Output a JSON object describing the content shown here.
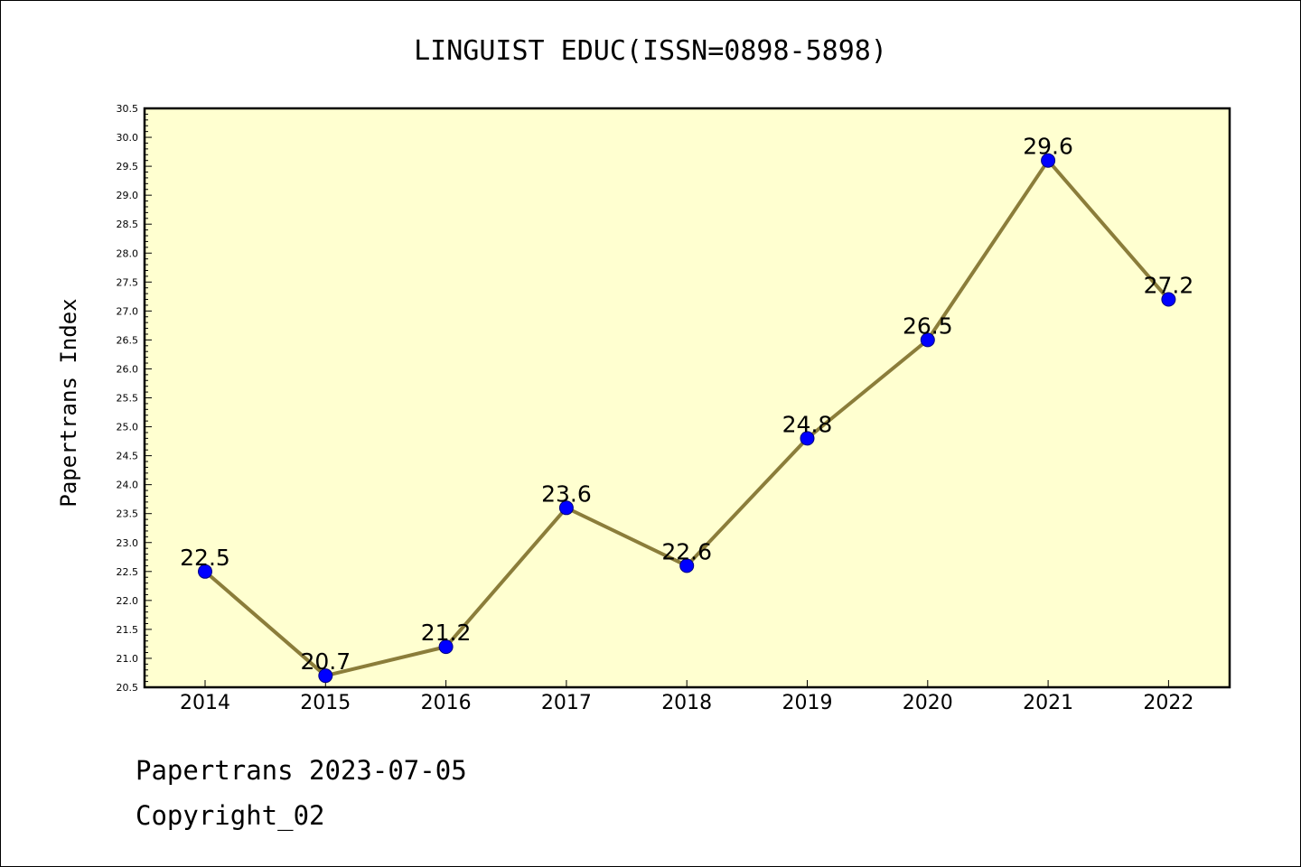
{
  "chart_data": {
    "type": "line",
    "title": "LINGUIST EDUC(ISSN=0898-5898)",
    "xlabel": "",
    "ylabel": "Papertrans Index",
    "categories": [
      "2014",
      "2015",
      "2016",
      "2017",
      "2018",
      "2019",
      "2020",
      "2021",
      "2022"
    ],
    "series": [
      {
        "values": [
          22.5,
          20.7,
          21.2,
          23.6,
          22.6,
          24.8,
          26.5,
          29.6,
          27.2
        ],
        "data_labels": [
          "22.5",
          "20.7",
          "21.2",
          "23.6",
          "22.6",
          "24.8",
          "26.5",
          "29.6",
          "27.2"
        ]
      }
    ],
    "ylim": [
      20.5,
      30.5
    ],
    "yticks": [
      "20.5",
      "21.0",
      "21.5",
      "22.0",
      "22.5",
      "23.0",
      "23.5",
      "24.0",
      "24.5",
      "25.0",
      "25.5",
      "26.0",
      "26.5",
      "27.0",
      "27.5",
      "28.0",
      "28.5",
      "29.0",
      "29.5",
      "30.0",
      "30.5"
    ],
    "grid": false,
    "legend": "none"
  },
  "footer": {
    "line1": "Papertrans 2023-07-05",
    "line2": "Copyright_02"
  },
  "colors": {
    "plot_background": "#ffffd0",
    "line": "#8b7d3a",
    "marker_fill": "#0000ff",
    "marker_edge": "#000080"
  }
}
